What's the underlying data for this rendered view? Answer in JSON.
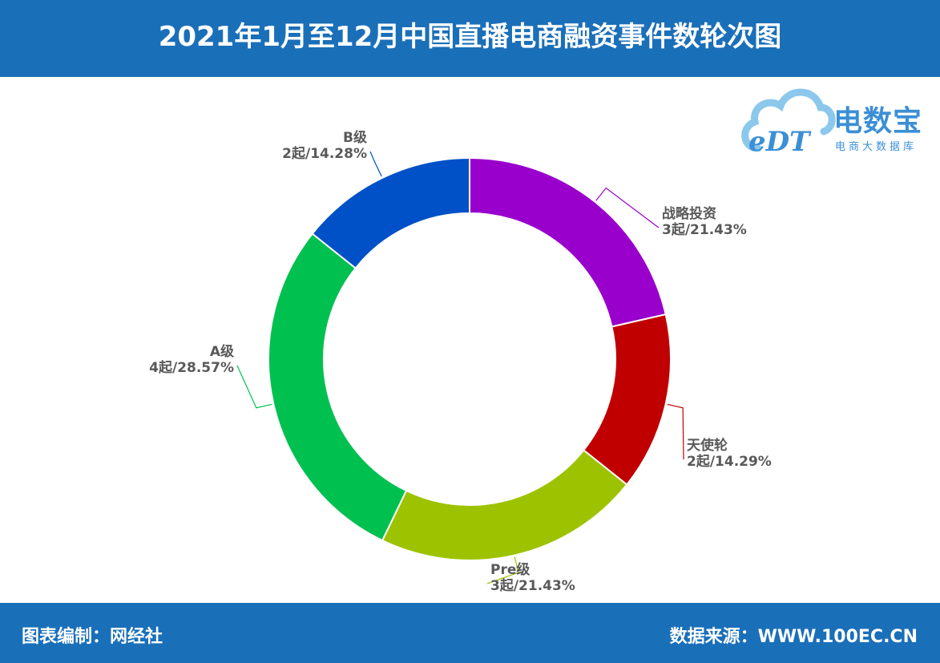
{
  "header": {
    "title": "2021年1月至12月中国直播电商融资事件数轮次图"
  },
  "footer": {
    "left": "图表编制：网经社",
    "right": "数据来源：WWW.100EC.CN"
  },
  "logo": {
    "brand": "电数宝",
    "sub": "电商大数据库",
    "mark": "eDT"
  },
  "chart_data": {
    "type": "pie",
    "title": "2021年1月至12月中国直播电商融资事件数轮次图",
    "donut": true,
    "series": [
      {
        "name": "战略投资",
        "value": 3,
        "count_label": "3起",
        "percent_label": "21.43%",
        "color": "#9900cc"
      },
      {
        "name": "天使轮",
        "value": 2,
        "count_label": "2起",
        "percent_label": "14.29%",
        "color": "#c00000"
      },
      {
        "name": "Pre级",
        "value": 3,
        "count_label": "3起",
        "percent_label": "21.43%",
        "color": "#9dc300"
      },
      {
        "name": "A级",
        "value": 4,
        "count_label": "4起",
        "percent_label": "28.57%",
        "color": "#00c050"
      },
      {
        "name": "B级",
        "value": 2,
        "count_label": "2起",
        "percent_label": "14.28%",
        "color": "#0050c8"
      }
    ]
  }
}
